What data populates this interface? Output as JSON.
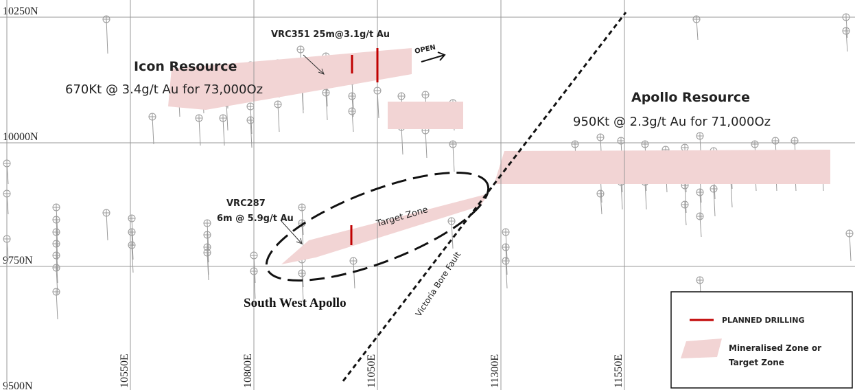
{
  "grid": {
    "northings": [
      "10250N",
      "10000N",
      "9750N",
      "9500N"
    ],
    "eastings": [
      "10550E",
      "10800E",
      "11050E",
      "11300E",
      "11550E"
    ]
  },
  "labels": {
    "vrc351": "VRC351 25m@3.1g/t Au",
    "open": "OPEN",
    "icon_title": "Icon Resource",
    "icon_detail": "670Kt @ 3.4g/t Au for 73,000Oz",
    "apollo_title": "Apollo Resource",
    "apollo_detail": "950Kt @ 2.3g/t Au for 71,000Oz",
    "vrc287": "VRC287",
    "vrc287_detail": "6m @ 5.9g/t Au",
    "target_zone": "Target Zone",
    "south_west_apollo": "South West Apollo",
    "fault": "Victoria Bore Fault"
  },
  "legend": {
    "planned": "PLANNED DRILLING",
    "zone_line1": "Mineralised Zone or",
    "zone_line2": "Target Zone"
  }
}
